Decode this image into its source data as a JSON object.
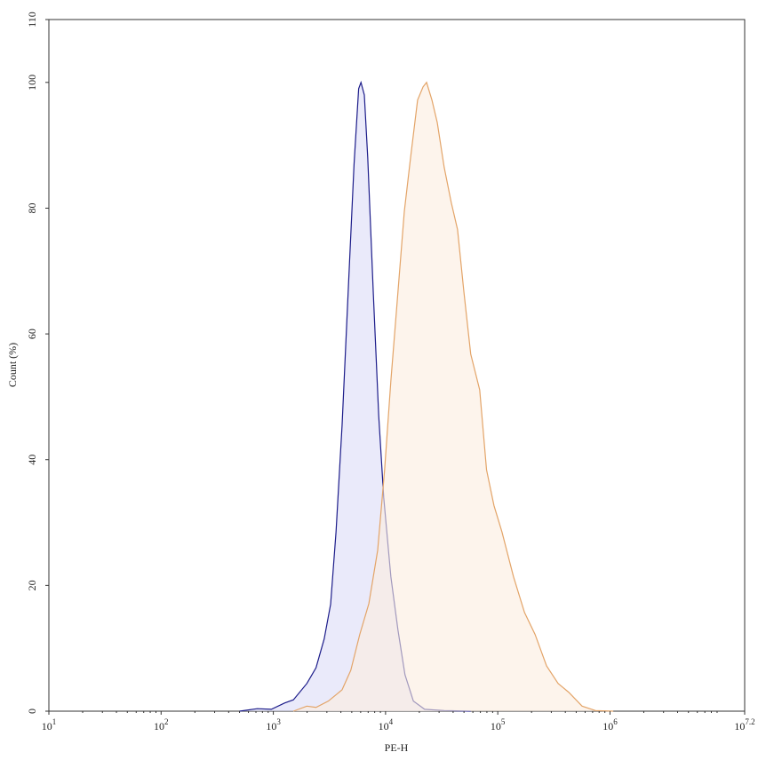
{
  "chart_data": {
    "type": "area",
    "x_label": "PE-H",
    "y_label": "Count (%)",
    "xscale": "log",
    "xlim": [
      10,
      15848932
    ],
    "ylim": [
      0,
      110
    ],
    "xticks": [
      {
        "value": 10,
        "label": "10",
        "exponent": "1"
      },
      {
        "value": 100,
        "label": "10",
        "exponent": "2"
      },
      {
        "value": 1000,
        "label": "10",
        "exponent": "3"
      },
      {
        "value": 10000,
        "label": "10",
        "exponent": "4"
      },
      {
        "value": 100000,
        "label": "10",
        "exponent": "5"
      },
      {
        "value": 1000000,
        "label": "10",
        "exponent": "6"
      },
      {
        "value": 15848932,
        "label": "10",
        "exponent": "7.2"
      }
    ],
    "yticks": [
      0,
      20,
      40,
      60,
      80,
      100,
      110
    ],
    "series": [
      {
        "color": "#1c1c8a",
        "fill": "#dcdcf6",
        "x": [
          500,
          720,
          960,
          1260,
          1510,
          1990,
          2400,
          2840,
          3240,
          3620,
          4100,
          4680,
          5240,
          5760,
          6040,
          6470,
          6940,
          7770,
          8690,
          9630,
          11150,
          12900,
          14900,
          17700,
          22300,
          33300,
          57400
        ],
        "values": [
          0,
          0.4,
          0.3,
          1.3,
          1.8,
          4.4,
          6.9,
          11.5,
          17,
          28.5,
          45.5,
          68,
          87,
          99,
          100,
          98,
          88,
          66.7,
          47,
          34,
          21.4,
          12.9,
          5.8,
          1.6,
          0.3,
          0.1,
          0
        ]
      },
      {
        "color": "#e3a468",
        "fill": "#fbece0",
        "x": [
          1510,
          1990,
          2400,
          3090,
          4100,
          4900,
          5890,
          7100,
          8510,
          9810,
          11150,
          12900,
          14700,
          16700,
          19300,
          21600,
          23200,
          25900,
          28900,
          33300,
          38500,
          43800,
          49900,
          57400,
          69000,
          79400,
          92500,
          109000,
          138000,
          173000,
          215000,
          272000,
          345000,
          429000,
          564000,
          742000,
          1070000
        ],
        "values": [
          0,
          0.8,
          0.6,
          1.6,
          3.4,
          6.5,
          12.2,
          17.1,
          25.6,
          38.4,
          52.5,
          66.7,
          79.5,
          88,
          97.2,
          99.3,
          100,
          97.2,
          93.6,
          86.5,
          80.9,
          76.6,
          66.7,
          56.8,
          51.1,
          38.4,
          32.7,
          28.5,
          21.4,
          15.7,
          12.2,
          7.2,
          4.4,
          3.0,
          0.8,
          0.1,
          0
        ]
      }
    ]
  }
}
